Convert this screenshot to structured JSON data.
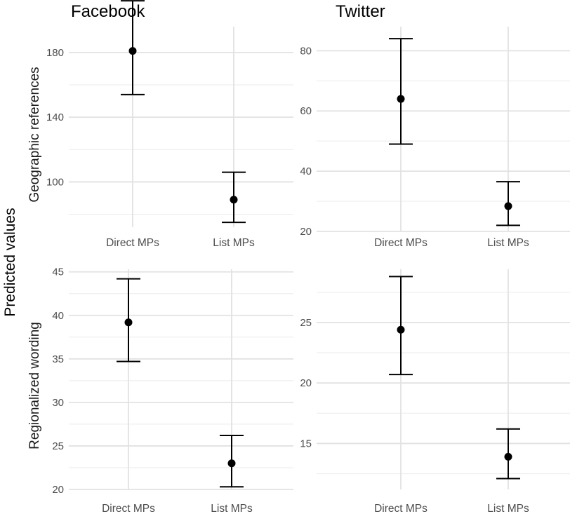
{
  "chart_data": {
    "type": "errorbar",
    "y_label": "Predicted values",
    "columns": [
      "Facebook",
      "Twitter"
    ],
    "rows": [
      "Geographic references",
      "Regionalized wording"
    ],
    "categories": [
      "Direct MPs",
      "List MPs"
    ],
    "panels": [
      {
        "column": "Facebook",
        "row": "Geographic references",
        "yticks": [
          100,
          140,
          180
        ],
        "ylim": [
          72,
          196
        ],
        "points": [
          {
            "category": "Direct MPs",
            "value": 181,
            "lower": 154,
            "upper": 212
          },
          {
            "category": "List MPs",
            "value": 89,
            "lower": 75,
            "upper": 106
          }
        ]
      },
      {
        "column": "Twitter",
        "row": "Geographic references",
        "yticks": [
          20,
          40,
          60,
          80
        ],
        "ylim": [
          20,
          88
        ],
        "points": [
          {
            "category": "Direct MPs",
            "value": 64,
            "lower": 49,
            "upper": 84
          },
          {
            "category": "List MPs",
            "value": 28.4,
            "lower": 22,
            "upper": 36.5
          }
        ]
      },
      {
        "column": "Facebook",
        "row": "Regionalized wording",
        "yticks": [
          20,
          25,
          30,
          35,
          40,
          45
        ],
        "ylim": [
          20,
          45.3
        ],
        "points": [
          {
            "category": "Direct MPs",
            "value": 39.2,
            "lower": 34.7,
            "upper": 44.2
          },
          {
            "category": "List MPs",
            "value": 23,
            "lower": 20.3,
            "upper": 26.2
          }
        ]
      },
      {
        "column": "Twitter",
        "row": "Regionalized wording",
        "yticks": [
          15,
          20,
          25
        ],
        "ylim": [
          11.2,
          29.4
        ],
        "points": [
          {
            "category": "Direct MPs",
            "value": 24.4,
            "lower": 20.7,
            "upper": 28.8
          },
          {
            "category": "List MPs",
            "value": 13.9,
            "lower": 12.1,
            "upper": 16.2
          }
        ]
      }
    ]
  }
}
